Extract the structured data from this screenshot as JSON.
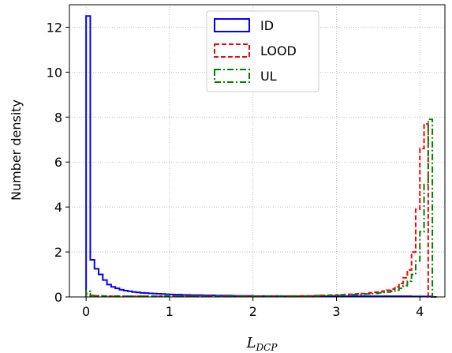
{
  "chart_data": {
    "type": "histogram",
    "xlabel_main": "L",
    "xlabel_sub": "DCP",
    "ylabel": "Number density",
    "xlim": [
      -0.2,
      4.3
    ],
    "ylim": [
      0,
      13
    ],
    "xticks": [
      0,
      1,
      2,
      3,
      4
    ],
    "yticks": [
      0,
      2,
      4,
      6,
      8,
      10,
      12
    ],
    "grid": true,
    "legend_position": "top-center",
    "bin_width": 0.05,
    "series": [
      {
        "name": "ID",
        "color": "#0000ff",
        "dash": "solid",
        "bin_start": 0.0,
        "values": [
          12.5,
          1.65,
          1.25,
          1.0,
          0.75,
          0.55,
          0.45,
          0.38,
          0.32,
          0.28,
          0.25,
          0.22,
          0.2,
          0.18,
          0.17,
          0.16,
          0.15,
          0.14,
          0.13,
          0.12,
          0.11,
          0.1,
          0.1,
          0.09,
          0.09,
          0.08,
          0.08,
          0.08,
          0.07,
          0.07,
          0.07,
          0.06,
          0.06,
          0.06,
          0.06,
          0.05,
          0.05,
          0.05,
          0.05,
          0.05,
          0.04,
          0.04,
          0.04,
          0.04,
          0.04,
          0.04,
          0.04,
          0.03,
          0.03,
          0.03,
          0.03,
          0.03,
          0.03,
          0.03,
          0.03,
          0.03,
          0.03,
          0.03,
          0.03,
          0.03,
          0.03,
          0.03,
          0.03,
          0.03,
          0.03,
          0.03,
          0.03,
          0.03,
          0.03,
          0.03,
          0.03,
          0.03,
          0.03,
          0.03,
          0.03,
          0.03,
          0.03,
          0.03,
          0.02,
          0.02,
          0.02,
          0.02,
          0.02,
          0.0
        ]
      },
      {
        "name": "LOOD",
        "color": "#ff0000",
        "dash": "6,3",
        "bin_start": 0.0,
        "values": [
          0.15,
          0.05,
          0.05,
          0.04,
          0.04,
          0.03,
          0.03,
          0.03,
          0.03,
          0.03,
          0.03,
          0.03,
          0.03,
          0.03,
          0.03,
          0.03,
          0.03,
          0.03,
          0.03,
          0.03,
          0.03,
          0.03,
          0.03,
          0.03,
          0.03,
          0.03,
          0.03,
          0.03,
          0.03,
          0.03,
          0.03,
          0.03,
          0.03,
          0.03,
          0.03,
          0.03,
          0.03,
          0.03,
          0.03,
          0.03,
          0.03,
          0.03,
          0.03,
          0.03,
          0.03,
          0.03,
          0.04,
          0.04,
          0.04,
          0.04,
          0.04,
          0.05,
          0.05,
          0.05,
          0.06,
          0.06,
          0.07,
          0.07,
          0.08,
          0.08,
          0.09,
          0.1,
          0.11,
          0.12,
          0.13,
          0.14,
          0.15,
          0.17,
          0.19,
          0.21,
          0.23,
          0.26,
          0.3,
          0.35,
          0.45,
          0.6,
          0.85,
          1.2,
          2.0,
          3.9,
          6.6,
          7.7,
          0.0
        ]
      },
      {
        "name": "UL",
        "color": "#008000",
        "dash": "8,3,2,3",
        "bin_start": 0.0,
        "values": [
          0.25,
          0.06,
          0.05,
          0.05,
          0.04,
          0.04,
          0.04,
          0.04,
          0.03,
          0.03,
          0.03,
          0.03,
          0.03,
          0.03,
          0.03,
          0.03,
          0.03,
          0.03,
          0.03,
          0.03,
          0.03,
          0.03,
          0.03,
          0.03,
          0.03,
          0.03,
          0.03,
          0.03,
          0.03,
          0.03,
          0.03,
          0.03,
          0.03,
          0.03,
          0.03,
          0.03,
          0.03,
          0.03,
          0.03,
          0.03,
          0.03,
          0.03,
          0.03,
          0.03,
          0.03,
          0.03,
          0.03,
          0.03,
          0.03,
          0.04,
          0.04,
          0.04,
          0.04,
          0.05,
          0.05,
          0.05,
          0.06,
          0.06,
          0.07,
          0.07,
          0.08,
          0.08,
          0.09,
          0.1,
          0.1,
          0.11,
          0.12,
          0.13,
          0.15,
          0.16,
          0.18,
          0.2,
          0.22,
          0.25,
          0.3,
          0.38,
          0.5,
          0.7,
          1.0,
          1.6,
          2.9,
          5.0,
          7.9,
          0.0
        ]
      }
    ]
  }
}
